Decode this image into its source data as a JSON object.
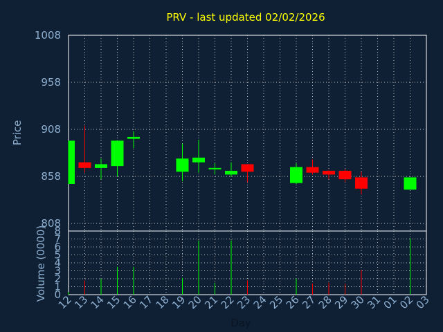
{
  "chart_data": [
    {
      "type": "candlestick",
      "title": "PRV - last updated 02/02/2026",
      "ylabel": "Price",
      "ylim": [
        800,
        1008
      ],
      "yticks": [
        1008,
        958,
        908,
        858,
        808
      ],
      "grid": true,
      "colors": {
        "background": "#0f2035",
        "title": "#ffff00",
        "label": "#8fb0d0",
        "up": "#00ff00",
        "down": "#ff0000",
        "wick": "#ffffff",
        "grid": "#c0c0c0"
      },
      "x": [
        "12",
        "13",
        "14",
        "15",
        "16",
        "17",
        "18",
        "19",
        "20",
        "21",
        "22",
        "23",
        "24",
        "25",
        "26",
        "27",
        "28",
        "29",
        "30",
        "31",
        "01",
        "02",
        "03"
      ],
      "candles": [
        {
          "day": "12",
          "open": 850,
          "close": 896,
          "high": 896,
          "low": 850
        },
        {
          "day": "13",
          "open": 873,
          "close": 867,
          "high": 912,
          "low": 862
        },
        {
          "day": "14",
          "open": 867,
          "close": 871,
          "high": 877,
          "low": 855
        },
        {
          "day": "15",
          "open": 869,
          "close": 896,
          "high": 896,
          "low": 858
        },
        {
          "day": "16",
          "open": 898,
          "close": 900,
          "high": 906,
          "low": 888
        },
        {
          "day": "19",
          "open": 863,
          "close": 877,
          "high": 893,
          "low": 853
        },
        {
          "day": "20",
          "open": 873,
          "close": 878,
          "high": 897,
          "low": 862
        },
        {
          "day": "21",
          "open": 866,
          "close": 867,
          "high": 872,
          "low": 860
        },
        {
          "day": "22",
          "open": 860,
          "close": 864,
          "high": 873,
          "low": 858
        },
        {
          "day": "23",
          "open": 871,
          "close": 863,
          "high": 871,
          "low": 852
        },
        {
          "day": "26",
          "open": 851,
          "close": 868,
          "high": 872,
          "low": 850
        },
        {
          "day": "27",
          "open": 868,
          "close": 862,
          "high": 876,
          "low": 860
        },
        {
          "day": "28",
          "open": 864,
          "close": 860,
          "high": 865,
          "low": 855
        },
        {
          "day": "29",
          "open": 864,
          "close": 855,
          "high": 866,
          "low": 852
        },
        {
          "day": "30",
          "open": 857,
          "close": 845,
          "high": 863,
          "low": 839
        },
        {
          "day": "02",
          "open": 844,
          "close": 857,
          "high": 857,
          "low": 844
        }
      ]
    },
    {
      "type": "bar",
      "ylabel": "Volume (0000)",
      "xlabel": "Day",
      "ylim": [
        0,
        8
      ],
      "yticks": [
        0,
        1,
        2,
        3,
        4,
        5,
        6,
        7,
        8
      ],
      "categories": [
        "12",
        "13",
        "14",
        "15",
        "16",
        "19",
        "20",
        "21",
        "22",
        "23",
        "26",
        "27",
        "28",
        "29",
        "30",
        "02"
      ],
      "values": [
        0.3,
        1.8,
        2.0,
        3.5,
        3.5,
        2.1,
        6.8,
        1.5,
        6.8,
        1.8,
        2.0,
        1.4,
        1.5,
        1.4,
        3.1,
        7.1
      ],
      "colors": [
        "up",
        "down",
        "up",
        "up",
        "up",
        "up",
        "up",
        "up",
        "up",
        "down",
        "up",
        "down",
        "down",
        "down",
        "down",
        "up"
      ]
    }
  ]
}
